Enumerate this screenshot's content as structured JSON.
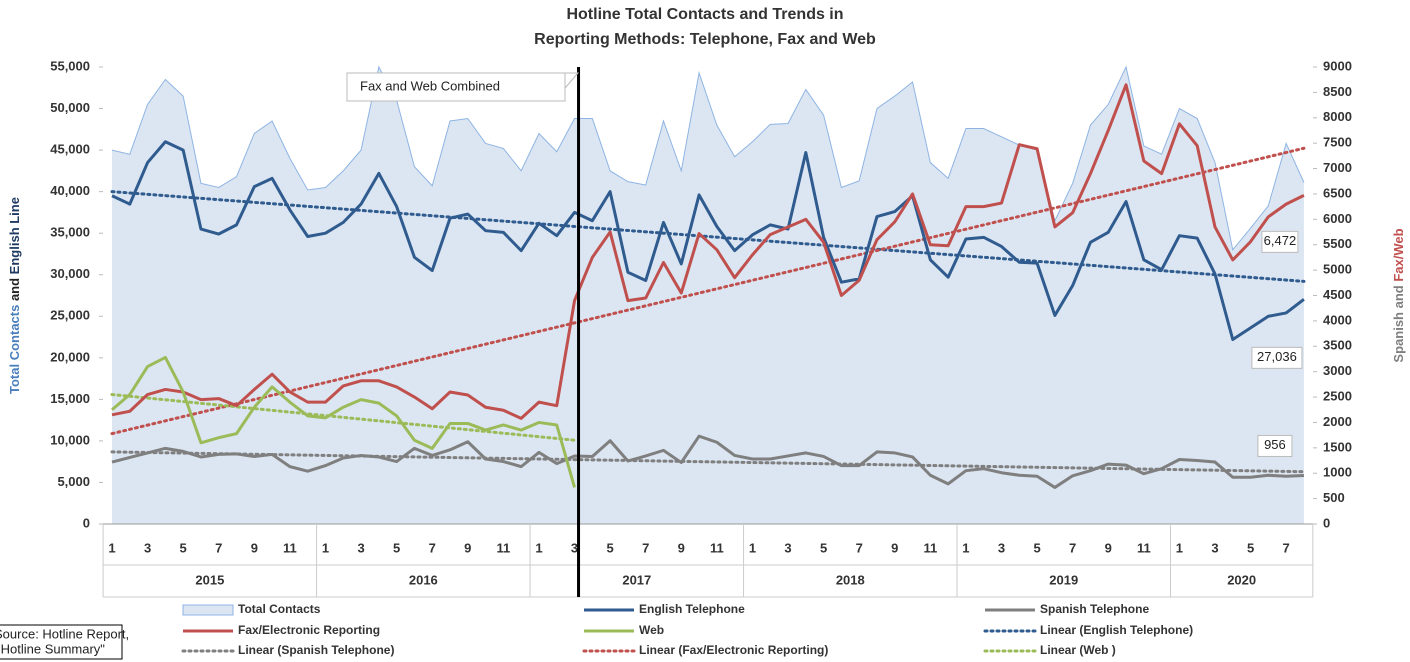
{
  "chart_data": {
    "type": "line",
    "title_lines": [
      "Hotline Total Contacts and Trends in",
      "Reporting Methods: Telephone, Fax and Web"
    ],
    "ylabel": [
      {
        "text": "Total Contacts",
        "color": "#4a7ebb"
      },
      {
        "text": " and ",
        "color": "#222222"
      },
      {
        "text": "English Line",
        "color": "#1f3b63"
      }
    ],
    "y2label": [
      {
        "text": "Spanish and ",
        "color": "#7f7f7f"
      },
      {
        "text": "Fax/Web",
        "color": "#c0504d"
      }
    ],
    "annotation": "Fax and Web Combined",
    "source": [
      "Source: Hotline Report,",
      "\"Hotline Summary\""
    ],
    "categories": [
      "1",
      null,
      "3",
      null,
      "5",
      null,
      "7",
      null,
      "9",
      null,
      "11",
      null,
      "1",
      null,
      "3",
      null,
      "5",
      null,
      "7",
      null,
      "9",
      null,
      "11",
      null,
      "1",
      null,
      "3",
      null,
      "5",
      null,
      "7",
      null,
      "9",
      null,
      "11",
      null,
      "1",
      null,
      "3",
      null,
      "5",
      null,
      "7",
      null,
      "9",
      null,
      "11",
      null,
      "1",
      null,
      "3",
      null,
      "5",
      null,
      "7",
      null,
      "9",
      null,
      "11",
      null,
      "1",
      null,
      "3",
      null,
      "5",
      null,
      "7",
      null
    ],
    "year_groups": [
      "2015",
      "2016",
      "2017",
      "2018",
      "2019",
      "2020"
    ],
    "ylim": [
      0,
      55000
    ],
    "yticks": [
      0,
      {
        "value": 5000,
        "label": "5,000"
      },
      {
        "value": 10000,
        "label": "10,000"
      },
      {
        "value": 15000,
        "label": "15,000"
      },
      {
        "value": 20000,
        "label": "20,000"
      },
      {
        "value": 25000,
        "label": "25,000"
      },
      {
        "value": 30000,
        "label": "30,000"
      },
      {
        "value": 35000,
        "label": "35,000"
      },
      {
        "value": 40000,
        "label": "40,000"
      },
      {
        "value": 45000,
        "label": "45,000"
      },
      {
        "value": 50000,
        "label": "50,000"
      },
      {
        "value": 55000,
        "label": "55,000"
      }
    ],
    "y2lim": [
      0,
      9000
    ],
    "y2ticks": [
      0,
      500,
      1000,
      1500,
      2000,
      2500,
      3000,
      3500,
      4000,
      4500,
      5000,
      5500,
      6000,
      6500,
      7000,
      7500,
      8000,
      8500,
      9000
    ],
    "grid": false,
    "series": [
      {
        "name": "Total Contacts",
        "kind": "area",
        "color": "#8eb4e3",
        "fill": "#dce6f2",
        "axis": "y",
        "values": [
          45000,
          44500,
          50500,
          53500,
          51500,
          41000,
          40500,
          41800,
          47000,
          48500,
          44000,
          40200,
          40500,
          42500,
          45000,
          55000,
          51000,
          43000,
          40700,
          48500,
          48800,
          45800,
          45200,
          42500,
          47000,
          44800,
          48800,
          48800,
          42500,
          41200,
          40800,
          48500,
          42500,
          54300,
          48000,
          44200,
          46000,
          48100,
          48200,
          52300,
          49200,
          40500,
          41300,
          50000,
          51500,
          53200,
          43500,
          41600,
          47600,
          47600,
          46600,
          45600,
          45000,
          36500,
          41000,
          48000,
          50500,
          55000,
          45500,
          44500,
          50000,
          48800,
          43500,
          33000,
          35600,
          38300,
          45800,
          41100
        ]
      },
      {
        "name": "English Telephone",
        "kind": "line",
        "color": "#2f5b8f",
        "axis": "y",
        "end_label": "27,036",
        "values": [
          39500,
          38500,
          43500,
          46000,
          45000,
          35500,
          34900,
          36000,
          40600,
          41600,
          37800,
          34600,
          35000,
          36300,
          38500,
          42200,
          38200,
          32100,
          30500,
          36800,
          37300,
          35300,
          35100,
          32900,
          36200,
          34700,
          37500,
          36500,
          40000,
          30300,
          29300,
          36300,
          31300,
          39600,
          35800,
          32900,
          34800,
          36000,
          35500,
          44700,
          34500,
          29100,
          29500,
          37000,
          37600,
          39500,
          31800,
          29700,
          34300,
          34500,
          33400,
          31500,
          31400,
          25100,
          28700,
          33900,
          35100,
          38800,
          31800,
          30600,
          34700,
          34400,
          30100,
          22200,
          23600,
          25000,
          25400,
          27036
        ]
      },
      {
        "name": "Spanish Telephone",
        "kind": "line",
        "color": "#7f7f7f",
        "axis": "y2",
        "end_label": "956",
        "values": [
          1220,
          1310,
          1400,
          1490,
          1430,
          1320,
          1370,
          1380,
          1330,
          1370,
          1130,
          1040,
          1150,
          1300,
          1350,
          1320,
          1230,
          1490,
          1350,
          1460,
          1620,
          1280,
          1230,
          1130,
          1410,
          1190,
          1340,
          1330,
          1640,
          1240,
          1340,
          1450,
          1210,
          1730,
          1610,
          1350,
          1280,
          1280,
          1340,
          1400,
          1330,
          1150,
          1150,
          1420,
          1400,
          1320,
          960,
          790,
          1050,
          1090,
          1010,
          960,
          940,
          720,
          950,
          1050,
          1180,
          1160,
          990,
          1090,
          1270,
          1250,
          1220,
          920,
          920,
          960,
          940,
          956
        ]
      },
      {
        "name": "Fax/Electronic Reporting",
        "kind": "line",
        "color": "#c0504d",
        "axis": "y2",
        "end_label": "6,472",
        "values": [
          2150,
          2220,
          2550,
          2650,
          2600,
          2450,
          2470,
          2330,
          2650,
          2950,
          2600,
          2400,
          2400,
          2720,
          2820,
          2820,
          2700,
          2500,
          2270,
          2600,
          2540,
          2300,
          2240,
          2080,
          2400,
          2330,
          4400,
          5250,
          5750,
          4400,
          4450,
          5150,
          4550,
          5720,
          5400,
          4850,
          5300,
          5700,
          5850,
          6000,
          5550,
          4500,
          4800,
          5600,
          5950,
          6500,
          5500,
          5480,
          6250,
          6250,
          6320,
          7470,
          7390,
          5850,
          6130,
          6900,
          7750,
          8650,
          7150,
          6900,
          7880,
          7450,
          5850,
          5200,
          5560,
          6050,
          6300,
          6472
        ]
      },
      {
        "name": "Web",
        "kind": "line",
        "color": "#9bbb59",
        "axis": "y2",
        "values": [
          2250,
          2550,
          3100,
          3280,
          2600,
          1600,
          1700,
          1780,
          2300,
          2700,
          2400,
          2130,
          2090,
          2300,
          2450,
          2380,
          2130,
          1650,
          1490,
          1980,
          1980,
          1850,
          1950,
          1850,
          2000,
          1950,
          720,
          null,
          null,
          null,
          null,
          null,
          null,
          null,
          null,
          null,
          null,
          null,
          null,
          null,
          null,
          null,
          null,
          null,
          null,
          null,
          null,
          null,
          null,
          null,
          null,
          null,
          null,
          null,
          null,
          null,
          null,
          null,
          null,
          null,
          null,
          null,
          null,
          null,
          null,
          null,
          null,
          null
        ]
      }
    ],
    "trendlines": [
      {
        "name": "Linear (English Telephone)",
        "color": "#2f5b8f",
        "axis": "y",
        "values": [
          40000,
          29200
        ]
      },
      {
        "name": "Linear (Spanish Telephone)",
        "color": "#7f7f7f",
        "axis": "y2",
        "values": [
          1420,
          1030
        ]
      },
      {
        "name": "Linear (Fax/Electronic Reporting)",
        "color": "#c0504d",
        "axis": "y2",
        "values": [
          1780,
          7400
        ]
      },
      {
        "name": "Linear (Web )",
        "color": "#9bbb59",
        "axis": "y2",
        "values": [
          2550,
          1650
        ]
      }
    ]
  }
}
